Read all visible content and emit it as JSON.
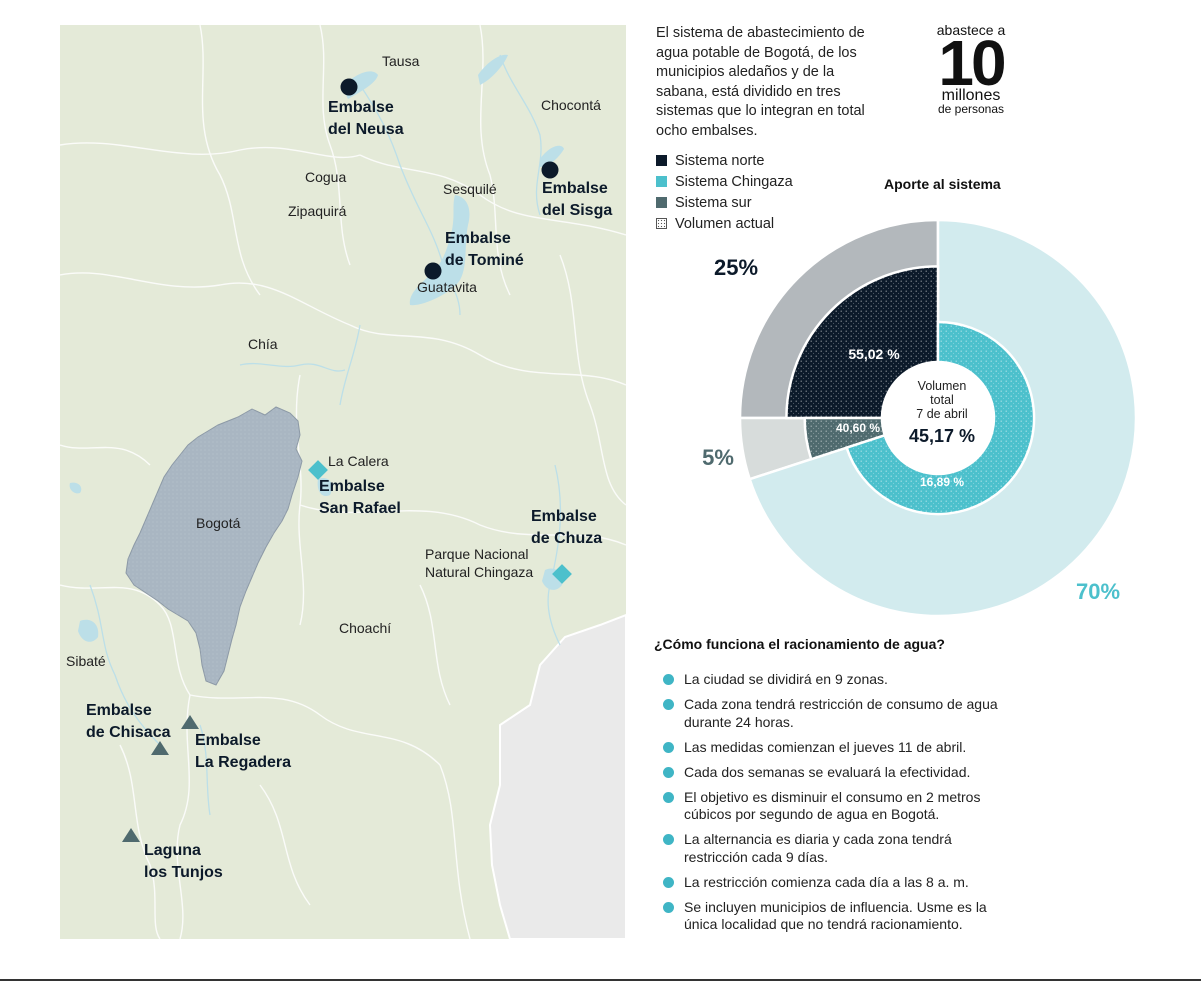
{
  "colors": {
    "norte": "#0c1a2a",
    "chingaza": "#4cc0cc",
    "sur": "#4f6a6e",
    "norte_outer": "#b3b8bc",
    "sur_outer": "#d7dcdb",
    "chingaza_outer": "#d2ebee",
    "map_land": "#e4ead8",
    "map_city": "#a9b6c2",
    "map_water": "#bcdfe8"
  },
  "map": {
    "towns": [
      "Tausa",
      "Chocontá",
      "Cogua",
      "Sesquilé",
      "Zipaquirá",
      "Guatavita",
      "Chía",
      "La Calera",
      "Bogotá",
      "Parque Nacional\nNatural Chingaza",
      "Choachí",
      "Sibaté"
    ],
    "reservoirs": [
      {
        "name": "Embalse\ndel Neusa",
        "system": "norte",
        "icon": "circle-icon"
      },
      {
        "name": "Embalse\ndel Sisga",
        "system": "norte",
        "icon": "circle-icon"
      },
      {
        "name": "Embalse\nde Tominé",
        "system": "norte",
        "icon": "circle-icon"
      },
      {
        "name": "Embalse\nSan Rafael",
        "system": "chingaza",
        "icon": "diamond-icon"
      },
      {
        "name": "Embalse\nde Chuza",
        "system": "chingaza",
        "icon": "diamond-icon"
      },
      {
        "name": "Embalse\nde Chisaca",
        "system": "sur",
        "icon": "triangle-icon"
      },
      {
        "name": "Embalse\nLa Regadera",
        "system": "sur",
        "icon": "triangle-icon"
      },
      {
        "name": "Laguna\nlos Tunjos",
        "system": "sur",
        "icon": "triangle-icon"
      }
    ]
  },
  "intro": "El sistema de abastecimiento de agua potable de Bogotá, de los municipios aledaños y de la sabana, está dividido en tres sistemas que lo integran en total ocho embalses.",
  "stat": {
    "prefix": "abastece a",
    "number": "10",
    "unit": "millones",
    "suffix": "de personas"
  },
  "legend": [
    {
      "label": "Sistema norte",
      "key": "norte"
    },
    {
      "label": "Sistema Chingaza",
      "key": "chingaza"
    },
    {
      "label": "Sistema sur",
      "key": "sur"
    },
    {
      "label": "Volumen actual",
      "key": "volumen"
    }
  ],
  "chart_data": {
    "type": "pie",
    "title": "Aporte al sistema",
    "series": [
      {
        "name": "Aporte al sistema",
        "categories": [
          "Sistema norte",
          "Sistema sur",
          "Sistema Chingaza"
        ],
        "values": [
          25,
          5,
          70
        ],
        "labels": [
          "25%",
          "5%",
          "70%"
        ]
      },
      {
        "name": "Volumen actual",
        "categories": [
          "Sistema norte",
          "Sistema sur",
          "Sistema Chingaza"
        ],
        "values": [
          55.02,
          40.6,
          16.89
        ],
        "labels": [
          "55,02 %",
          "40,60 %",
          "16,89 %"
        ]
      }
    ],
    "center": {
      "line1": "Volumen",
      "line2": "total",
      "line3": "7 de abril",
      "value": "45,17 %"
    }
  },
  "faq": {
    "title": "¿Cómo funciona el racionamiento de agua?",
    "items": [
      "La ciudad se dividirá en 9 zonas.",
      "Cada zona tendrá restricción de consumo de agua durante 24 horas.",
      "Las medidas comienzan el jueves 11 de abril.",
      "Cada dos semanas se evaluará la efectividad.",
      "El objetivo es disminuir el consumo en 2 metros cúbicos por segundo de agua en Bogotá.",
      "La alternancia es diaria y cada zona tendrá restricción cada 9 días.",
      "La restricción comienza cada día a las 8 a. m.",
      "Se incluyen municipios de influencia. Usme es la única localidad que no tendrá racionamiento."
    ]
  }
}
